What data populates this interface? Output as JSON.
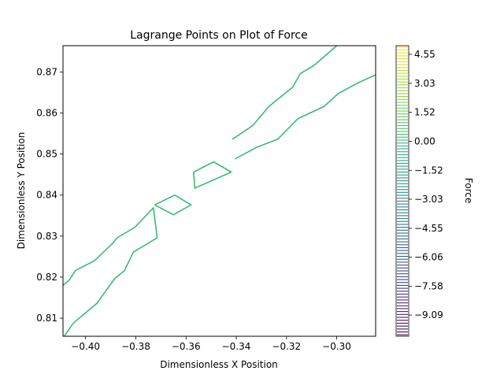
{
  "chart_data": {
    "type": "contour",
    "title": "Lagrange Points on Plot of Force",
    "xlabel": "Dimensionless X Position",
    "ylabel": "Dimensionless Y Position",
    "xlim": [
      -0.409,
      -0.2845
    ],
    "ylim": [
      0.8056,
      0.8764
    ],
    "x_ticks": [
      {
        "value": -0.4,
        "label": "−0.40"
      },
      {
        "value": -0.38,
        "label": "−0.38"
      },
      {
        "value": -0.36,
        "label": "−0.36"
      },
      {
        "value": -0.34,
        "label": "−0.34"
      },
      {
        "value": -0.32,
        "label": "−0.32"
      },
      {
        "value": -0.3,
        "label": "−0.30"
      }
    ],
    "y_ticks": [
      {
        "value": 0.81,
        "label": "0.81"
      },
      {
        "value": 0.82,
        "label": "0.82"
      },
      {
        "value": 0.83,
        "label": "0.83"
      },
      {
        "value": 0.84,
        "label": "0.84"
      },
      {
        "value": 0.85,
        "label": "0.85"
      },
      {
        "value": 0.86,
        "label": "0.86"
      },
      {
        "value": 0.87,
        "label": "0.87"
      }
    ],
    "grid": false,
    "contour_level": 0.0,
    "contour_color": "#3bbb75",
    "contours": [
      [
        [
          -0.409,
          0.818
        ],
        [
          -0.4065,
          0.8193
        ],
        [
          -0.404,
          0.8216
        ],
        [
          -0.3965,
          0.824
        ],
        [
          -0.389,
          0.8284
        ],
        [
          -0.3875,
          0.8296
        ],
        [
          -0.3805,
          0.8321
        ],
        [
          -0.373,
          0.8369
        ],
        [
          -0.3715,
          0.8296
        ],
        [
          -0.381,
          0.8261
        ],
        [
          -0.3845,
          0.8216
        ],
        [
          -0.3885,
          0.8196
        ],
        [
          -0.3955,
          0.8136
        ],
        [
          -0.4045,
          0.809
        ],
        [
          -0.4055,
          0.8083
        ],
        [
          -0.4085,
          0.8056
        ]
      ],
      [
        [
          -0.3725,
          0.8376
        ],
        [
          -0.3645,
          0.84
        ],
        [
          -0.358,
          0.8376
        ],
        [
          -0.365,
          0.8352
        ],
        [
          -0.3725,
          0.8376
        ]
      ],
      [
        [
          -0.357,
          0.8456
        ],
        [
          -0.349,
          0.8481
        ],
        [
          -0.342,
          0.8456
        ],
        [
          -0.3565,
          0.8417
        ],
        [
          -0.357,
          0.8456
        ]
      ],
      [
        [
          -0.3415,
          0.8536
        ],
        [
          -0.3335,
          0.8569
        ],
        [
          -0.327,
          0.8616
        ],
        [
          -0.3175,
          0.8663
        ],
        [
          -0.3145,
          0.8696
        ],
        [
          -0.309,
          0.8716
        ],
        [
          -0.3,
          0.8764
        ]
      ],
      [
        [
          -0.3405,
          0.8488
        ],
        [
          -0.332,
          0.8516
        ],
        [
          -0.3235,
          0.8536
        ],
        [
          -0.3155,
          0.8586
        ],
        [
          -0.305,
          0.8616
        ],
        [
          -0.2995,
          0.8647
        ],
        [
          -0.292,
          0.8672
        ],
        [
          -0.2845,
          0.8693
        ]
      ]
    ],
    "colorbar": {
      "label": "Force",
      "colormap": "viridis",
      "vmin": -10.2,
      "vmax": 5.0,
      "ticks": [
        {
          "value": 4.55,
          "label": "4.55"
        },
        {
          "value": 3.03,
          "label": "3.03"
        },
        {
          "value": 1.52,
          "label": "1.52"
        },
        {
          "value": 0.0,
          "label": "0.00"
        },
        {
          "value": -1.52,
          "label": "−1.52"
        },
        {
          "value": -3.03,
          "label": "−3.03"
        },
        {
          "value": -4.55,
          "label": "−4.55"
        },
        {
          "value": -6.06,
          "label": "−6.06"
        },
        {
          "value": -7.58,
          "label": "−7.58"
        },
        {
          "value": -9.09,
          "label": "−9.09"
        }
      ],
      "levels": 100
    }
  }
}
